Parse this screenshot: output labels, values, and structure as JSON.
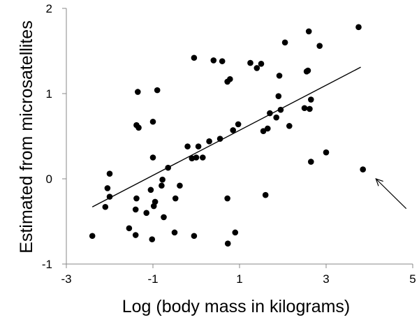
{
  "chart_data": {
    "type": "scatter",
    "xlabel": "Log (body mass in kilograms)",
    "ylabel": "Estimated from microsatellites",
    "xlim": [
      -3,
      5
    ],
    "ylim": [
      -1,
      2
    ],
    "xticks": [
      "-3",
      "-1",
      "1",
      "3",
      "5"
    ],
    "yticks": [
      "-1",
      "0",
      "1",
      "2"
    ],
    "grid": false,
    "legend": "none",
    "marker_color": "#000000",
    "points": [
      {
        "x": -2.4,
        "y": -0.67
      },
      {
        "x": -2.1,
        "y": -0.33
      },
      {
        "x": -2.05,
        "y": -0.11
      },
      {
        "x": -2.0,
        "y": -0.21
      },
      {
        "x": -2.0,
        "y": 0.06
      },
      {
        "x": -1.55,
        "y": -0.58
      },
      {
        "x": -1.4,
        "y": -0.36
      },
      {
        "x": -1.4,
        "y": -0.66
      },
      {
        "x": -1.38,
        "y": -0.23
      },
      {
        "x": -1.38,
        "y": 0.63
      },
      {
        "x": -1.35,
        "y": 1.02
      },
      {
        "x": -1.33,
        "y": 0.6
      },
      {
        "x": -1.15,
        "y": -0.4
      },
      {
        "x": -1.05,
        "y": -0.13
      },
      {
        "x": -1.02,
        "y": -0.71
      },
      {
        "x": -1.0,
        "y": 0.67
      },
      {
        "x": -1.0,
        "y": 0.25
      },
      {
        "x": -0.98,
        "y": -0.32
      },
      {
        "x": -0.95,
        "y": -0.27
      },
      {
        "x": -0.9,
        "y": 1.04
      },
      {
        "x": -0.8,
        "y": -0.08
      },
      {
        "x": -0.78,
        "y": -0.01
      },
      {
        "x": -0.75,
        "y": -0.45
      },
      {
        "x": -0.65,
        "y": 0.13
      },
      {
        "x": -0.5,
        "y": -0.63
      },
      {
        "x": -0.48,
        "y": -0.23
      },
      {
        "x": -0.38,
        "y": -0.08
      },
      {
        "x": -0.2,
        "y": 0.38
      },
      {
        "x": -0.1,
        "y": 0.24
      },
      {
        "x": -0.05,
        "y": 1.42
      },
      {
        "x": -0.05,
        "y": -0.67
      },
      {
        "x": 0.0,
        "y": 0.25
      },
      {
        "x": 0.05,
        "y": 0.38
      },
      {
        "x": 0.15,
        "y": 0.25
      },
      {
        "x": 0.3,
        "y": 0.44
      },
      {
        "x": 0.4,
        "y": 1.39
      },
      {
        "x": 0.55,
        "y": 0.47
      },
      {
        "x": 0.6,
        "y": 1.38
      },
      {
        "x": 0.72,
        "y": 1.14
      },
      {
        "x": 0.72,
        "y": -0.23
      },
      {
        "x": 0.73,
        "y": -0.76
      },
      {
        "x": 0.78,
        "y": 1.17
      },
      {
        "x": 0.85,
        "y": 0.57
      },
      {
        "x": 0.9,
        "y": -0.63
      },
      {
        "x": 0.97,
        "y": 0.64
      },
      {
        "x": 1.25,
        "y": 1.36
      },
      {
        "x": 1.4,
        "y": 1.3
      },
      {
        "x": 1.5,
        "y": 1.35
      },
      {
        "x": 1.55,
        "y": 0.56
      },
      {
        "x": 1.6,
        "y": -0.19
      },
      {
        "x": 1.65,
        "y": 0.59
      },
      {
        "x": 1.7,
        "y": 0.77
      },
      {
        "x": 1.85,
        "y": 0.72
      },
      {
        "x": 1.9,
        "y": 0.97
      },
      {
        "x": 1.92,
        "y": 1.21
      },
      {
        "x": 1.95,
        "y": 0.81
      },
      {
        "x": 2.05,
        "y": 1.6
      },
      {
        "x": 2.15,
        "y": 0.62
      },
      {
        "x": 2.5,
        "y": 0.83
      },
      {
        "x": 2.55,
        "y": 1.26
      },
      {
        "x": 2.58,
        "y": 1.27
      },
      {
        "x": 2.6,
        "y": 1.73
      },
      {
        "x": 2.62,
        "y": 0.82
      },
      {
        "x": 2.65,
        "y": 0.93
      },
      {
        "x": 2.65,
        "y": 0.2
      },
      {
        "x": 2.85,
        "y": 1.56
      },
      {
        "x": 3.0,
        "y": 0.31
      },
      {
        "x": 3.75,
        "y": 1.78
      },
      {
        "x": 3.85,
        "y": 0.11
      }
    ],
    "trendline": {
      "x": [
        -2.4,
        3.8
      ],
      "y": [
        -0.33,
        1.31
      ]
    },
    "annotation_arrow": {
      "from": {
        "x": 4.85,
        "y": -0.35
      },
      "to": {
        "x": 4.15,
        "y": 0.0
      }
    }
  }
}
